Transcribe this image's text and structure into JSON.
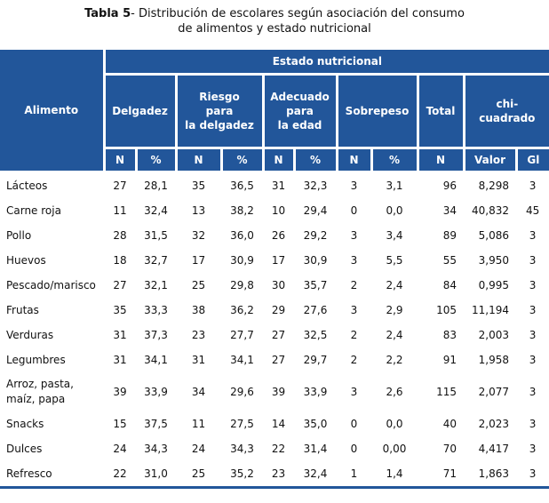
{
  "title": {
    "bold": "Tabla 5",
    "rest": "- Distribución de escolares según asociación del consumo",
    "line2": "de alimentos y estado nutricional"
  },
  "header": {
    "alimento": "Alimento",
    "estado": "Estado nutricional",
    "groups": [
      "Delgadez",
      "Riesgo para la delgadez",
      "Adecuado para la edad",
      "Sobrepeso",
      "Total",
      "chi-cuadrado"
    ],
    "sub": [
      "N",
      "%",
      "N",
      "%",
      "N",
      "%",
      "N",
      "%",
      "N",
      "Valor",
      "Gl"
    ]
  },
  "rows": [
    [
      "Lácteos",
      "27",
      "28,1",
      "35",
      "36,5",
      "31",
      "32,3",
      "3",
      "3,1",
      "96",
      "8,298",
      "3"
    ],
    [
      "Carne roja",
      "11",
      "32,4",
      "13",
      "38,2",
      "10",
      "29,4",
      "0",
      "0,0",
      "34",
      "40,832",
      "45"
    ],
    [
      "Pollo",
      "28",
      "31,5",
      "32",
      "36,0",
      "26",
      "29,2",
      "3",
      "3,4",
      "89",
      "5,086",
      "3"
    ],
    [
      "Huevos",
      "18",
      "32,7",
      "17",
      "30,9",
      "17",
      "30,9",
      "3",
      "5,5",
      "55",
      "3,950",
      "3"
    ],
    [
      "Pescado/marisco",
      "27",
      "32,1",
      "25",
      "29,8",
      "30",
      "35,7",
      "2",
      "2,4",
      "84",
      "0,995",
      "3"
    ],
    [
      "Frutas",
      "35",
      "33,3",
      "38",
      "36,2",
      "29",
      "27,6",
      "3",
      "2,9",
      "105",
      "11,194",
      "3"
    ],
    [
      "Verduras",
      "31",
      "37,3",
      "23",
      "27,7",
      "27",
      "32,5",
      "2",
      "2,4",
      "83",
      "2,003",
      "3"
    ],
    [
      "Legumbres",
      "31",
      "34,1",
      "31",
      "34,1",
      "27",
      "29,7",
      "2",
      "2,2",
      "91",
      "1,958",
      "3"
    ],
    [
      "Arroz, pasta, maíz, papa",
      "39",
      "33,9",
      "34",
      "29,6",
      "39",
      "33,9",
      "3",
      "2,6",
      "115",
      "2,077",
      "3"
    ],
    [
      "Snacks",
      "15",
      "37,5",
      "11",
      "27,5",
      "14",
      "35,0",
      "0",
      "0,0",
      "40",
      "2,023",
      "3"
    ],
    [
      "Dulces",
      "24",
      "34,3",
      "24",
      "34,3",
      "22",
      "31,4",
      "0",
      "0,00",
      "70",
      "4,417",
      "3"
    ],
    [
      "Refresco",
      "22",
      "31,0",
      "25",
      "35,2",
      "23",
      "32,4",
      "1",
      "1,4",
      "71",
      "1,863",
      "3"
    ]
  ]
}
